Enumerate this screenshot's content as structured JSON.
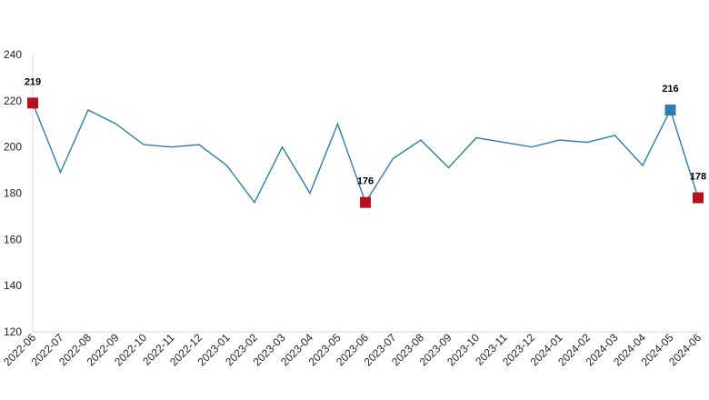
{
  "chart_data": {
    "type": "line",
    "title": "",
    "xlabel": "",
    "ylabel": "",
    "ylim": [
      120,
      240
    ],
    "yticks": [
      120,
      140,
      160,
      180,
      200,
      220,
      240
    ],
    "grid": false,
    "legend": "none",
    "line_color": "#2e7dae",
    "categories": [
      "2022-06",
      "2022-07",
      "2022-08",
      "2022-09",
      "2022-10",
      "2022-11",
      "2022-12",
      "2023-01",
      "2023-02",
      "2023-03",
      "2023-04",
      "2023-05",
      "2023-06",
      "2023-07",
      "2023-08",
      "2023-09",
      "2023-10",
      "2023-11",
      "2023-12",
      "2024-01",
      "2024-02",
      "2024-03",
      "2024-04",
      "2024-05",
      "2024-06"
    ],
    "values": [
      219,
      189,
      216,
      210,
      201,
      200,
      201,
      192,
      176,
      200,
      180,
      210,
      176,
      195,
      203,
      191,
      204,
      202,
      200,
      203,
      202,
      205,
      192,
      216,
      178
    ],
    "highlights": [
      {
        "category": "2022-06",
        "value": 219,
        "label": "219",
        "color": "#b5121b"
      },
      {
        "category": "2023-06",
        "value": 176,
        "label": "176",
        "color": "#b5121b"
      },
      {
        "category": "2024-05",
        "value": 216,
        "label": "216",
        "color": "#2e7dae"
      },
      {
        "category": "2024-06",
        "value": 178,
        "label": "178",
        "color": "#b5121b"
      }
    ]
  }
}
